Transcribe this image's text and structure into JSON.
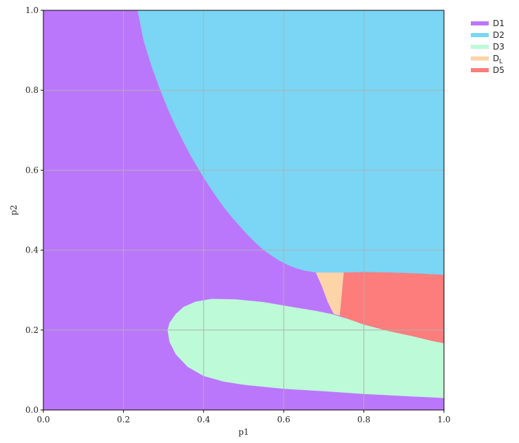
{
  "chart_data": {
    "type": "area",
    "title": "",
    "xlabel": "p1",
    "ylabel": "p2",
    "xlim": [
      0.0,
      1.0
    ],
    "ylim": [
      0.0,
      1.0
    ],
    "xticks": [
      "0.0",
      "0.2",
      "0.4",
      "0.6",
      "0.8",
      "1.0"
    ],
    "yticks": [
      "0.0",
      "0.2",
      "0.4",
      "0.6",
      "0.8",
      "1.0"
    ],
    "grid": true,
    "legend_position": "outside-top-right",
    "colors": {
      "D1": "#bb77fb",
      "D2": "#7ad6f4",
      "D3": "#bdfad7",
      "DL": "#fdd3a8",
      "D5": "#fc7d7b",
      "grid": "#b0b0b0"
    },
    "series": [
      {
        "key": "D1",
        "name": "D1",
        "label_main": "D",
        "label_sub": "1"
      },
      {
        "key": "D2",
        "name": "D2",
        "label_main": "D",
        "label_sub": "2"
      },
      {
        "key": "D3",
        "name": "D3",
        "label_main": "D",
        "label_sub": "3"
      },
      {
        "key": "DL",
        "name": "DL",
        "label_main": "D",
        "label_sub": "L",
        "subscript": true
      },
      {
        "key": "D5",
        "name": "D5",
        "label_main": "D",
        "label_sub": "5"
      }
    ],
    "regions": {
      "D1": [
        [
          0,
          0
        ],
        [
          1,
          0
        ],
        [
          1,
          1
        ],
        [
          0,
          1
        ]
      ],
      "D2": [
        [
          0.235,
          1.0
        ],
        [
          0.25,
          0.925
        ],
        [
          0.27,
          0.86
        ],
        [
          0.29,
          0.805
        ],
        [
          0.31,
          0.755
        ],
        [
          0.33,
          0.71
        ],
        [
          0.35,
          0.67
        ],
        [
          0.37,
          0.632
        ],
        [
          0.39,
          0.598
        ],
        [
          0.41,
          0.566
        ],
        [
          0.43,
          0.536
        ],
        [
          0.45,
          0.508
        ],
        [
          0.47,
          0.483
        ],
        [
          0.49,
          0.46
        ],
        [
          0.51,
          0.438
        ],
        [
          0.53,
          0.418
        ],
        [
          0.55,
          0.4
        ],
        [
          0.57,
          0.386
        ],
        [
          0.59,
          0.373
        ],
        [
          0.61,
          0.363
        ],
        [
          0.63,
          0.355
        ],
        [
          0.65,
          0.349
        ],
        [
          0.68,
          0.344
        ],
        [
          0.75,
          0.344
        ],
        [
          0.8,
          0.345
        ],
        [
          0.86,
          0.344
        ],
        [
          0.92,
          0.342
        ],
        [
          0.96,
          0.34
        ],
        [
          1.0,
          0.338
        ],
        [
          1.0,
          1.0
        ]
      ],
      "D3": [
        [
          0.31,
          0.2
        ],
        [
          0.315,
          0.218
        ],
        [
          0.33,
          0.24
        ],
        [
          0.35,
          0.258
        ],
        [
          0.38,
          0.271
        ],
        [
          0.42,
          0.278
        ],
        [
          0.48,
          0.277
        ],
        [
          0.55,
          0.27
        ],
        [
          0.62,
          0.258
        ],
        [
          0.68,
          0.248
        ],
        [
          0.72,
          0.24
        ],
        [
          0.76,
          0.228
        ],
        [
          0.8,
          0.214
        ],
        [
          0.86,
          0.198
        ],
        [
          0.92,
          0.185
        ],
        [
          0.97,
          0.173
        ],
        [
          1.0,
          0.167
        ],
        [
          1.0,
          0.03
        ],
        [
          0.9,
          0.035
        ],
        [
          0.8,
          0.04
        ],
        [
          0.7,
          0.047
        ],
        [
          0.6,
          0.053
        ],
        [
          0.5,
          0.063
        ],
        [
          0.45,
          0.071
        ],
        [
          0.4,
          0.085
        ],
        [
          0.36,
          0.108
        ],
        [
          0.33,
          0.14
        ],
        [
          0.315,
          0.17
        ]
      ],
      "DL": [
        [
          0.68,
          0.344
        ],
        [
          0.75,
          0.344
        ],
        [
          0.74,
          0.236
        ],
        [
          0.725,
          0.24
        ],
        [
          0.71,
          0.27
        ],
        [
          0.695,
          0.31
        ]
      ],
      "D5": [
        [
          0.75,
          0.344
        ],
        [
          0.8,
          0.345
        ],
        [
          0.86,
          0.344
        ],
        [
          0.92,
          0.342
        ],
        [
          0.96,
          0.34
        ],
        [
          1.0,
          0.338
        ],
        [
          1.0,
          0.167
        ],
        [
          0.97,
          0.173
        ],
        [
          0.92,
          0.185
        ],
        [
          0.86,
          0.198
        ],
        [
          0.8,
          0.214
        ],
        [
          0.76,
          0.228
        ],
        [
          0.74,
          0.236
        ]
      ]
    }
  }
}
